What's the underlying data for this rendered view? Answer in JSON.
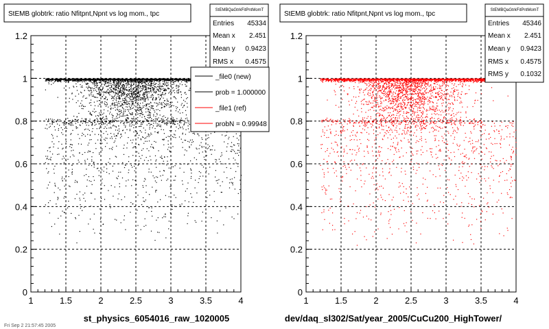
{
  "footer_text": "Fri Sep 2 21:57:45 2005",
  "panels": [
    {
      "title": "StEMB globtrk: ratio Nfitpnt,Npnt vs log mom., tpc",
      "stats": {
        "header": "StEMBQaGtrkFitPntMomT",
        "rows": [
          {
            "label": "Entries",
            "value": "45334"
          },
          {
            "label": "Mean x",
            "value": "2.451"
          },
          {
            "label": "Mean y",
            "value": "0.9423"
          },
          {
            "label": "RMS x",
            "value": "0.4575"
          }
        ]
      },
      "xlabel": "st_physics_6054016_raw_1020005",
      "legend": [
        {
          "label": "_file0 (new)",
          "color": "#000000"
        },
        {
          "label": "prob = 1.000000",
          "color": "#000000"
        },
        {
          "label": "_file1 (ref)",
          "color": "#ff0000"
        },
        {
          "label": "probN = 0.99948",
          "color": "#ff0000"
        }
      ]
    },
    {
      "title": "StEMB globtrk: ratio Nfitpnt,Npnt vs log mom., tpc",
      "stats": {
        "header": "StEMBQaGtrkFitPntMomT",
        "rows": [
          {
            "label": "Entries",
            "value": "45346"
          },
          {
            "label": "Mean x",
            "value": "2.451"
          },
          {
            "label": "Mean y",
            "value": "0.9423"
          },
          {
            "label": "RMS x",
            "value": "0.4575"
          },
          {
            "label": "RMS y",
            "value": "0.1032"
          }
        ]
      },
      "xlabel": "dev/daq_sl302/Sat/year_2005/CuCu200_HighTower/"
    }
  ],
  "chart_data": [
    {
      "type": "scatter",
      "title": "StEMB globtrk: ratio Nfitpnt,Npnt vs log mom., tpc",
      "xlabel": "st_physics_6054016_raw_1020005",
      "ylabel": "",
      "xlim": [
        1,
        4
      ],
      "ylim": [
        0,
        1.2
      ],
      "x_ticks": [
        1,
        1.5,
        2,
        2.5,
        3,
        3.5,
        4
      ],
      "x_tick_labels": [
        "1",
        "1.5",
        "2",
        "2.5",
        "3",
        "3.5",
        "4"
      ],
      "y_ticks": [
        0,
        0.2,
        0.4,
        0.6,
        0.8,
        1,
        1.2
      ],
      "y_tick_labels": [
        "0",
        "0.2",
        "0.4",
        "0.6",
        "0.8",
        "1",
        "1.2"
      ],
      "grid": true,
      "marker_color": "#000000",
      "entries": 45334,
      "mean_x": 2.451,
      "mean_y": 0.9423,
      "rms_x": 0.4575,
      "series": [
        {
          "name": "_file0 (new)",
          "color": "#000000"
        }
      ],
      "distribution": {
        "dense_band_y": 1.0,
        "dense_band_x_range": [
          1.2,
          3.55
        ],
        "secondary_band_y": 0.8,
        "sparse_x_range": [
          1.2,
          4.0
        ],
        "sparse_y_min": 0.18
      }
    },
    {
      "type": "scatter",
      "title": "StEMB globtrk: ratio Nfitpnt,Npnt vs log mom., tpc",
      "xlabel": "dev/daq_sl302/Sat/year_2005/CuCu200_HighTower/",
      "ylabel": "",
      "xlim": [
        1,
        4
      ],
      "ylim": [
        0,
        1.2
      ],
      "x_ticks": [
        1,
        1.5,
        2,
        2.5,
        3,
        3.5,
        4
      ],
      "x_tick_labels": [
        "1",
        "1.5",
        "2",
        "2.5",
        "3",
        "3.5",
        "4"
      ],
      "y_ticks": [
        0,
        0.2,
        0.4,
        0.6,
        0.8,
        1,
        1.2
      ],
      "y_tick_labels": [
        "0",
        "0.2",
        "0.4",
        "0.6",
        "0.8",
        "1",
        "1.2"
      ],
      "grid": true,
      "marker_color": "#ff0000",
      "entries": 45346,
      "mean_x": 2.451,
      "mean_y": 0.9423,
      "rms_x": 0.4575,
      "rms_y": 0.1032,
      "series": [
        {
          "name": "_file1 (ref)",
          "color": "#ff0000"
        }
      ],
      "distribution": {
        "dense_band_y": 1.0,
        "dense_band_x_range": [
          1.2,
          3.55
        ],
        "secondary_band_y": 0.8,
        "sparse_x_range": [
          1.2,
          4.0
        ],
        "sparse_y_min": 0.18
      }
    }
  ]
}
